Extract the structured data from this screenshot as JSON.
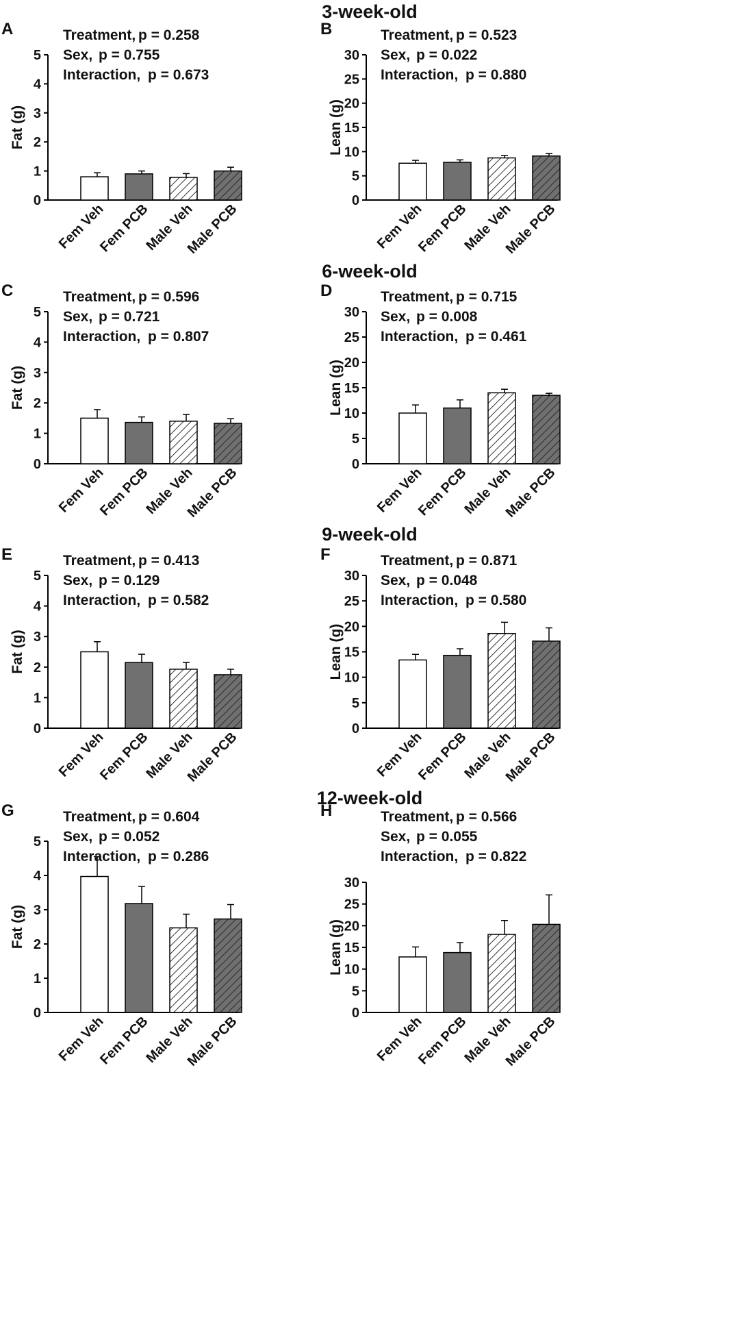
{
  "row_titles": [
    "3-week-old",
    "6-week-old",
    "9-week-old",
    "12-week-old"
  ],
  "colors": {
    "veh_female": "#ffffff",
    "pcb": "#707070",
    "male_veh": "#ffffff",
    "male_pcb": "#707070",
    "axis": "#000000"
  },
  "chart_data": [
    {
      "panel": "A",
      "row": 0,
      "col": 0,
      "type": "bar",
      "ylabel": "Fat (g)",
      "ylim": [
        0,
        5
      ],
      "yticks": [
        0,
        1,
        2,
        3,
        4,
        5
      ],
      "categories": [
        "Fem Veh",
        "Fem PCB",
        "Male Veh",
        "Male PCB"
      ],
      "values": [
        0.8,
        0.9,
        0.78,
        1.0
      ],
      "errors": [
        0.14,
        0.1,
        0.13,
        0.13
      ],
      "annotations": [
        {
          "label": "Treatment,",
          "p": "p = 0.258"
        },
        {
          "label": "Sex,",
          "p": "p = 0.755"
        },
        {
          "label": "Interaction,",
          "p": "p = 0.673"
        }
      ]
    },
    {
      "panel": "B",
      "row": 0,
      "col": 1,
      "type": "bar",
      "ylabel": "Lean (g)",
      "ylim": [
        0,
        30
      ],
      "yticks": [
        0,
        5,
        10,
        15,
        20,
        25,
        30
      ],
      "categories": [
        "Fem Veh",
        "Fem PCB",
        "Male Veh",
        "Male PCB"
      ],
      "values": [
        7.6,
        7.8,
        8.7,
        9.1
      ],
      "errors": [
        0.6,
        0.5,
        0.5,
        0.5
      ],
      "annotations": [
        {
          "label": "Treatment,",
          "p": "p = 0.523"
        },
        {
          "label": "Sex,",
          "p": "p = 0.022"
        },
        {
          "label": "Interaction,",
          "p": "p = 0.880"
        }
      ]
    },
    {
      "panel": "C",
      "row": 1,
      "col": 0,
      "type": "bar",
      "ylabel": "Fat (g)",
      "ylim": [
        0,
        5
      ],
      "yticks": [
        0,
        1,
        2,
        3,
        4,
        5
      ],
      "categories": [
        "Fem Veh",
        "Fem PCB",
        "Male Veh",
        "Male PCB"
      ],
      "values": [
        1.5,
        1.36,
        1.4,
        1.33
      ],
      "errors": [
        0.28,
        0.18,
        0.22,
        0.15
      ],
      "annotations": [
        {
          "label": "Treatment,",
          "p": "p = 0.596"
        },
        {
          "label": "Sex,",
          "p": "p = 0.721"
        },
        {
          "label": "Interaction,",
          "p": "p = 0.807"
        }
      ]
    },
    {
      "panel": "D",
      "row": 1,
      "col": 1,
      "type": "bar",
      "ylabel": "Lean (g)",
      "ylim": [
        0,
        30
      ],
      "yticks": [
        0,
        5,
        10,
        15,
        20,
        25,
        30
      ],
      "categories": [
        "Fem Veh",
        "Fem PCB",
        "Male Veh",
        "Male PCB"
      ],
      "values": [
        10.0,
        11.0,
        14.0,
        13.5
      ],
      "errors": [
        1.6,
        1.6,
        0.7,
        0.4
      ],
      "annotations": [
        {
          "label": "Treatment,",
          "p": "p = 0.715"
        },
        {
          "label": "Sex,",
          "p": "p = 0.008"
        },
        {
          "label": "Interaction,",
          "p": "p = 0.461"
        }
      ]
    },
    {
      "panel": "E",
      "row": 2,
      "col": 0,
      "type": "bar",
      "ylabel": "Fat (g)",
      "ylim": [
        0,
        5
      ],
      "yticks": [
        0,
        1,
        2,
        3,
        4,
        5
      ],
      "categories": [
        "Fem Veh",
        "Fem PCB",
        "Male Veh",
        "Male PCB"
      ],
      "values": [
        2.5,
        2.15,
        1.93,
        1.75
      ],
      "errors": [
        0.33,
        0.27,
        0.22,
        0.18
      ],
      "annotations": [
        {
          "label": "Treatment,",
          "p": "p = 0.413"
        },
        {
          "label": "Sex,",
          "p": "p = 0.129"
        },
        {
          "label": "Interaction,",
          "p": "p = 0.582"
        }
      ]
    },
    {
      "panel": "F",
      "row": 2,
      "col": 1,
      "type": "bar",
      "ylabel": "Lean (g)",
      "ylim": [
        0,
        30
      ],
      "yticks": [
        0,
        5,
        10,
        15,
        20,
        25,
        30
      ],
      "categories": [
        "Fem Veh",
        "Fem PCB",
        "Male Veh",
        "Male PCB"
      ],
      "values": [
        13.4,
        14.3,
        18.6,
        17.1
      ],
      "errors": [
        1.1,
        1.3,
        2.2,
        2.6
      ],
      "annotations": [
        {
          "label": "Treatment,",
          "p": "p = 0.871"
        },
        {
          "label": "Sex,",
          "p": "p = 0.048"
        },
        {
          "label": "Interaction,",
          "p": "p = 0.580"
        }
      ]
    },
    {
      "panel": "G",
      "row": 3,
      "col": 0,
      "type": "bar",
      "ylabel": "Fat (g)",
      "ylim": [
        0,
        5
      ],
      "yticks": [
        0,
        1,
        2,
        3,
        4,
        5
      ],
      "categories": [
        "Fem Veh",
        "Fem PCB",
        "Male Veh",
        "Male PCB"
      ],
      "values": [
        3.97,
        3.18,
        2.47,
        2.73
      ],
      "errors": [
        0.58,
        0.5,
        0.4,
        0.42
      ],
      "annotations": [
        {
          "label": "Treatment,",
          "p": "p = 0.604"
        },
        {
          "label": "Sex,",
          "p": "p = 0.052"
        },
        {
          "label": "Interaction,",
          "p": "p = 0.286"
        }
      ]
    },
    {
      "panel": "H",
      "row": 3,
      "col": 1,
      "type": "bar",
      "ylabel": "Lean (g)",
      "ylim": [
        0,
        30
      ],
      "yticks": [
        0,
        5,
        10,
        15,
        20,
        25,
        30
      ],
      "categories": [
        "Fem Veh",
        "Fem PCB",
        "Male Veh",
        "Male PCB"
      ],
      "values": [
        12.8,
        13.8,
        18.0,
        20.3
      ],
      "errors": [
        2.3,
        2.3,
        3.2,
        6.8
      ],
      "annotations": [
        {
          "label": "Treatment,",
          "p": "p = 0.566"
        },
        {
          "label": "Sex,",
          "p": "p = 0.055"
        },
        {
          "label": "Interaction,",
          "p": "p = 0.822"
        }
      ]
    }
  ]
}
